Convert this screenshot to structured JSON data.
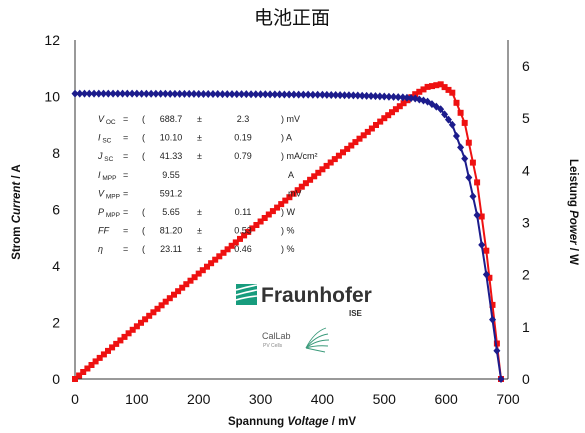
{
  "chart_data": {
    "type": "line",
    "title": "电池正面",
    "xlabel": "Spannung Voltage / mV",
    "xlabel_parts": {
      "plain": "Spannung ",
      "italic": "Voltage",
      "unit": " / mV"
    },
    "ylabel_left": "Strom Current / A",
    "ylabel_left_parts": {
      "plain": "Strom ",
      "italic": "Current",
      "unit": " / A"
    },
    "ylabel_right": "Leistung Power / W",
    "ylabel_right_parts": {
      "plain": "Leistung ",
      "italic": "Power",
      "unit": " / W"
    },
    "xlim": [
      0,
      700
    ],
    "ylim_left": [
      0,
      12
    ],
    "ylim_right": [
      0,
      6.5
    ],
    "x_ticks": [
      "0",
      "100",
      "200",
      "300",
      "400",
      "500",
      "600",
      "700"
    ],
    "y_left_ticks": [
      "0",
      "2",
      "4",
      "6",
      "8",
      "10",
      "12"
    ],
    "y_right_ticks": [
      "0",
      "1",
      "2",
      "3",
      "4",
      "5",
      "6"
    ],
    "grid": false,
    "series": [
      {
        "axis": "left",
        "color": "#1c1c8c",
        "marker": "diamond",
        "x": [
          0,
          100,
          200,
          300,
          400,
          450,
          500,
          530,
          550,
          570,
          591.2,
          610,
          630,
          650,
          665,
          675,
          682,
          688.7
        ],
        "values": [
          10.1,
          10.1,
          10.09,
          10.08,
          10.06,
          10.04,
          10.0,
          9.97,
          9.93,
          9.82,
          9.55,
          9.0,
          7.8,
          5.8,
          3.7,
          2.1,
          1.0,
          0.0
        ]
      },
      {
        "axis": "right",
        "color": "#ee1111",
        "marker": "square",
        "x": [
          0,
          100,
          200,
          300,
          400,
          500,
          550,
          570,
          591.2,
          610,
          630,
          650,
          665,
          675,
          682,
          688.7
        ],
        "values": [
          0,
          1.01,
          2.02,
          3.02,
          4.02,
          5.0,
          5.46,
          5.6,
          5.65,
          5.49,
          4.91,
          3.77,
          2.46,
          1.42,
          0.68,
          0
        ]
      }
    ]
  },
  "parameters": [
    {
      "symbol": "V",
      "sub": "OC",
      "open": "(",
      "value": "688.7",
      "pm": "±",
      "err": "2.3",
      "unit": ") mV"
    },
    {
      "symbol": "I",
      "sub": "SC",
      "open": "(",
      "value": "10.10",
      "pm": "±",
      "err": "0.19",
      "unit": ") A"
    },
    {
      "symbol": "J",
      "sub": "SC",
      "open": "(",
      "value": "41.33",
      "pm": "±",
      "err": "0.79",
      "unit": ") mA/cm²"
    },
    {
      "symbol": "I",
      "sub": "MPP",
      "open": "",
      "value": "9.55",
      "pm": "",
      "err": "",
      "unit": "A"
    },
    {
      "symbol": "V",
      "sub": "MPP",
      "open": "",
      "value": "591.2",
      "pm": "",
      "err": "",
      "unit": "mV"
    },
    {
      "symbol": "P",
      "sub": "MPP",
      "open": "(",
      "value": "5.65",
      "pm": "±",
      "err": "0.11",
      "unit": ") W"
    },
    {
      "symbol": "FF",
      "sub": "",
      "open": "(",
      "value": "81.20",
      "pm": "±",
      "err": "0.53",
      "unit": ") %"
    },
    {
      "symbol": "η",
      "sub": "",
      "open": "(",
      "value": "23.11",
      "pm": "±",
      "err": "0.46",
      "unit": ") %"
    }
  ],
  "logo": {
    "name": "Fraunhofer",
    "sub": "ISE",
    "brand_color": "#179c7d",
    "callab_name": "CalLab",
    "callab_sub": "PV Cells"
  }
}
